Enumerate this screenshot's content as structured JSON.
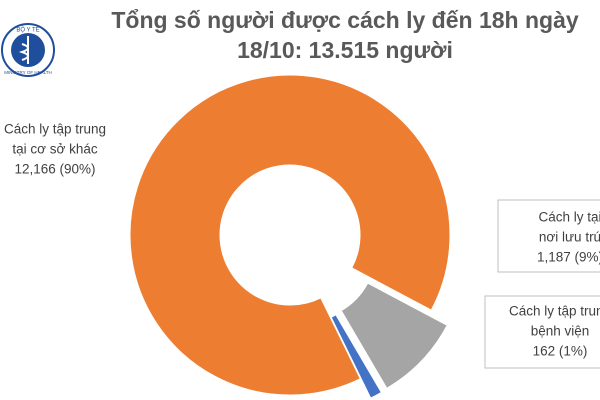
{
  "chart_data": {
    "type": "pie",
    "title": [
      "Tổng số người được cách ly đến 18h ngày",
      "18/10: 13.515 người"
    ],
    "logo": {
      "top": "BỘ Y TẾ",
      "bottom": "MINISTRY OF HEALTH"
    },
    "categories": [
      [
        "Cách ly tập trung",
        "tại cơ sở khác"
      ],
      [
        "Cách ly tại",
        "nơi lưu trú"
      ],
      [
        "Cách ly tập trung",
        "bệnh viện"
      ]
    ],
    "values": [
      12166,
      1187,
      162
    ],
    "value_labels": [
      "12,166 (90%)",
      "1,187 (9%)",
      "162 (1%)"
    ],
    "colors": [
      "#ed7d31",
      "#a5a5a5",
      "#4472c4"
    ]
  }
}
